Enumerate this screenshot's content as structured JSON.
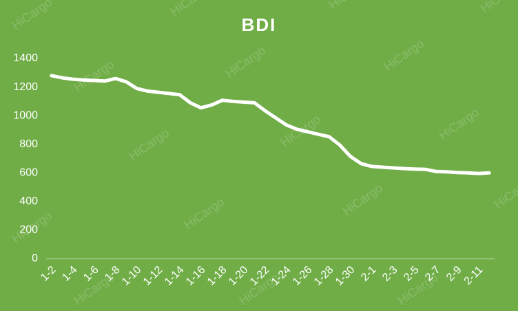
{
  "chart_data": {
    "type": "line",
    "title": "BDI",
    "watermark": "HiCargo",
    "categories": [
      "1-2",
      null,
      "1-4",
      null,
      "1-6",
      null,
      "1-8",
      null,
      "1-10",
      null,
      "1-12",
      null,
      "1-14",
      null,
      "1-16",
      null,
      "1-18",
      null,
      "1-20",
      null,
      "1-22",
      null,
      "1-24",
      null,
      "1-26",
      null,
      "1-28",
      null,
      "1-30",
      null,
      "2-1",
      null,
      "2-3",
      null,
      "2-5",
      null,
      "2-7",
      null,
      "2-9",
      null,
      "2-11",
      null
    ],
    "series": [
      {
        "name": "BDI",
        "color": "#ffffff",
        "values": [
          1280,
          1265,
          1255,
          1250,
          1246,
          1242,
          1260,
          1237,
          1190,
          1172,
          1164,
          1155,
          1147,
          1090,
          1055,
          1075,
          1108,
          1100,
          1095,
          1090,
          1035,
          985,
          935,
          905,
          887,
          870,
          853,
          795,
          715,
          665,
          645,
          640,
          635,
          630,
          627,
          625,
          610,
          607,
          603,
          600,
          596,
          600
        ]
      }
    ],
    "ylim": [
      0,
      1400
    ],
    "yticks": [
      0,
      200,
      400,
      600,
      800,
      1000,
      1200,
      1400
    ],
    "grid": false
  }
}
